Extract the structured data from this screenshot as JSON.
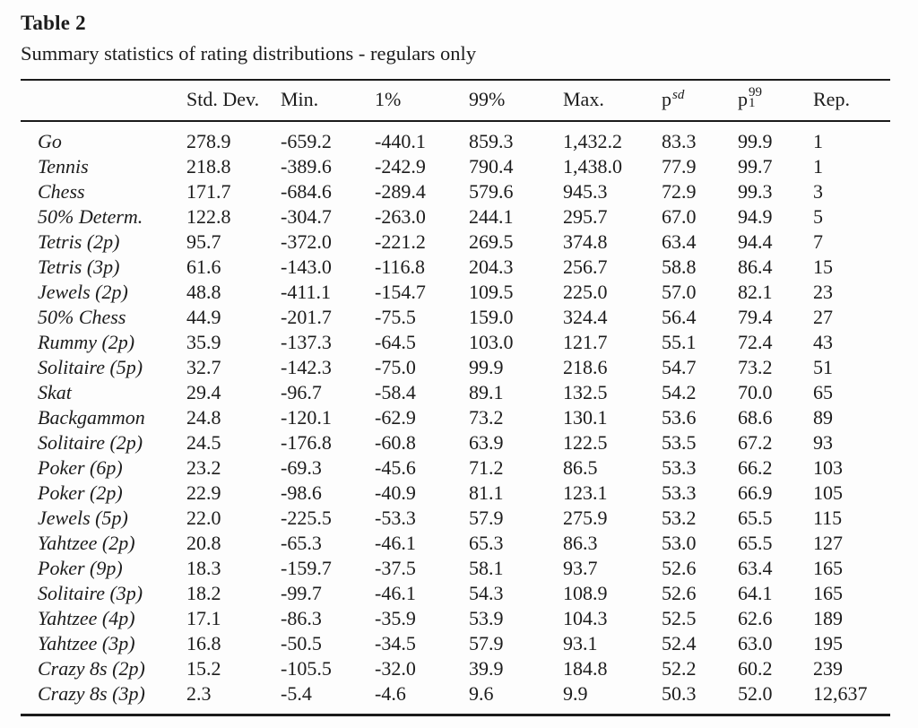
{
  "page": {
    "background": "#fdfdfd",
    "text_color": "#1c1c1c",
    "rule_color": "#1b1b1b"
  },
  "title": "Table 2",
  "subtitle": "Summary statistics of rating distributions - regulars only",
  "table": {
    "columns": [
      {
        "key": "game",
        "base": ""
      },
      {
        "key": "std_dev",
        "base": "Std. Dev."
      },
      {
        "key": "min",
        "base": "Min."
      },
      {
        "key": "pct1",
        "base": "1%"
      },
      {
        "key": "pct99",
        "base": "99%"
      },
      {
        "key": "max",
        "base": "Max."
      },
      {
        "key": "p_sd",
        "base": "p",
        "sup": "sd"
      },
      {
        "key": "p_1_99",
        "base": "p",
        "sup": "99",
        "sub": "1"
      },
      {
        "key": "rep",
        "base": "Rep."
      }
    ],
    "rows": [
      {
        "label": "Go",
        "values": [
          "278.9",
          "-659.2",
          "-440.1",
          "859.3",
          "1,432.2",
          "83.3",
          "99.9",
          "1"
        ]
      },
      {
        "label": "Tennis",
        "values": [
          "218.8",
          "-389.6",
          "-242.9",
          "790.4",
          "1,438.0",
          "77.9",
          "99.7",
          "1"
        ]
      },
      {
        "label": "Chess",
        "values": [
          "171.7",
          "-684.6",
          "-289.4",
          "579.6",
          "945.3",
          "72.9",
          "99.3",
          "3"
        ]
      },
      {
        "label": "50% Determ.",
        "values": [
          "122.8",
          "-304.7",
          "-263.0",
          "244.1",
          "295.7",
          "67.0",
          "94.9",
          "5"
        ]
      },
      {
        "label": "Tetris (2p)",
        "values": [
          "95.7",
          "-372.0",
          "-221.2",
          "269.5",
          "374.8",
          "63.4",
          "94.4",
          "7"
        ]
      },
      {
        "label": "Tetris (3p)",
        "values": [
          "61.6",
          "-143.0",
          "-116.8",
          "204.3",
          "256.7",
          "58.8",
          "86.4",
          "15"
        ]
      },
      {
        "label": "Jewels (2p)",
        "values": [
          "48.8",
          "-411.1",
          "-154.7",
          "109.5",
          "225.0",
          "57.0",
          "82.1",
          "23"
        ]
      },
      {
        "label": "50% Chess",
        "values": [
          "44.9",
          "-201.7",
          "-75.5",
          "159.0",
          "324.4",
          "56.4",
          "79.4",
          "27"
        ]
      },
      {
        "label": "Rummy (2p)",
        "values": [
          "35.9",
          "-137.3",
          "-64.5",
          "103.0",
          "121.7",
          "55.1",
          "72.4",
          "43"
        ]
      },
      {
        "label": "Solitaire (5p)",
        "values": [
          "32.7",
          "-142.3",
          "-75.0",
          "99.9",
          "218.6",
          "54.7",
          "73.2",
          "51"
        ]
      },
      {
        "label": "Skat",
        "values": [
          "29.4",
          "-96.7",
          "-58.4",
          "89.1",
          "132.5",
          "54.2",
          "70.0",
          "65"
        ]
      },
      {
        "label": "Backgammon",
        "values": [
          "24.8",
          "-120.1",
          "-62.9",
          "73.2",
          "130.1",
          "53.6",
          "68.6",
          "89"
        ]
      },
      {
        "label": "Solitaire (2p)",
        "values": [
          "24.5",
          "-176.8",
          "-60.8",
          "63.9",
          "122.5",
          "53.5",
          "67.2",
          "93"
        ]
      },
      {
        "label": "Poker (6p)",
        "values": [
          "23.2",
          "-69.3",
          "-45.6",
          "71.2",
          "86.5",
          "53.3",
          "66.2",
          "103"
        ]
      },
      {
        "label": "Poker (2p)",
        "values": [
          "22.9",
          "-98.6",
          "-40.9",
          "81.1",
          "123.1",
          "53.3",
          "66.9",
          "105"
        ]
      },
      {
        "label": "Jewels (5p)",
        "values": [
          "22.0",
          "-225.5",
          "-53.3",
          "57.9",
          "275.9",
          "53.2",
          "65.5",
          "115"
        ]
      },
      {
        "label": "Yahtzee (2p)",
        "values": [
          "20.8",
          "-65.3",
          "-46.1",
          "65.3",
          "86.3",
          "53.0",
          "65.5",
          "127"
        ]
      },
      {
        "label": "Poker (9p)",
        "values": [
          "18.3",
          "-159.7",
          "-37.5",
          "58.1",
          "93.7",
          "52.6",
          "63.4",
          "165"
        ]
      },
      {
        "label": "Solitaire (3p)",
        "values": [
          "18.2",
          "-99.7",
          "-46.1",
          "54.3",
          "108.9",
          "52.6",
          "64.1",
          "165"
        ]
      },
      {
        "label": "Yahtzee (4p)",
        "values": [
          "17.1",
          "-86.3",
          "-35.9",
          "53.9",
          "104.3",
          "52.5",
          "62.6",
          "189"
        ]
      },
      {
        "label": "Yahtzee (3p)",
        "values": [
          "16.8",
          "-50.5",
          "-34.5",
          "57.9",
          "93.1",
          "52.4",
          "63.0",
          "195"
        ]
      },
      {
        "label": "Crazy 8s (2p)",
        "values": [
          "15.2",
          "-105.5",
          "-32.0",
          "39.9",
          "184.8",
          "52.2",
          "60.2",
          "239"
        ]
      },
      {
        "label": "Crazy 8s (3p)",
        "values": [
          "2.3",
          "-5.4",
          "-4.6",
          "9.6",
          "9.9",
          "50.3",
          "52.0",
          "12,637"
        ]
      }
    ]
  }
}
